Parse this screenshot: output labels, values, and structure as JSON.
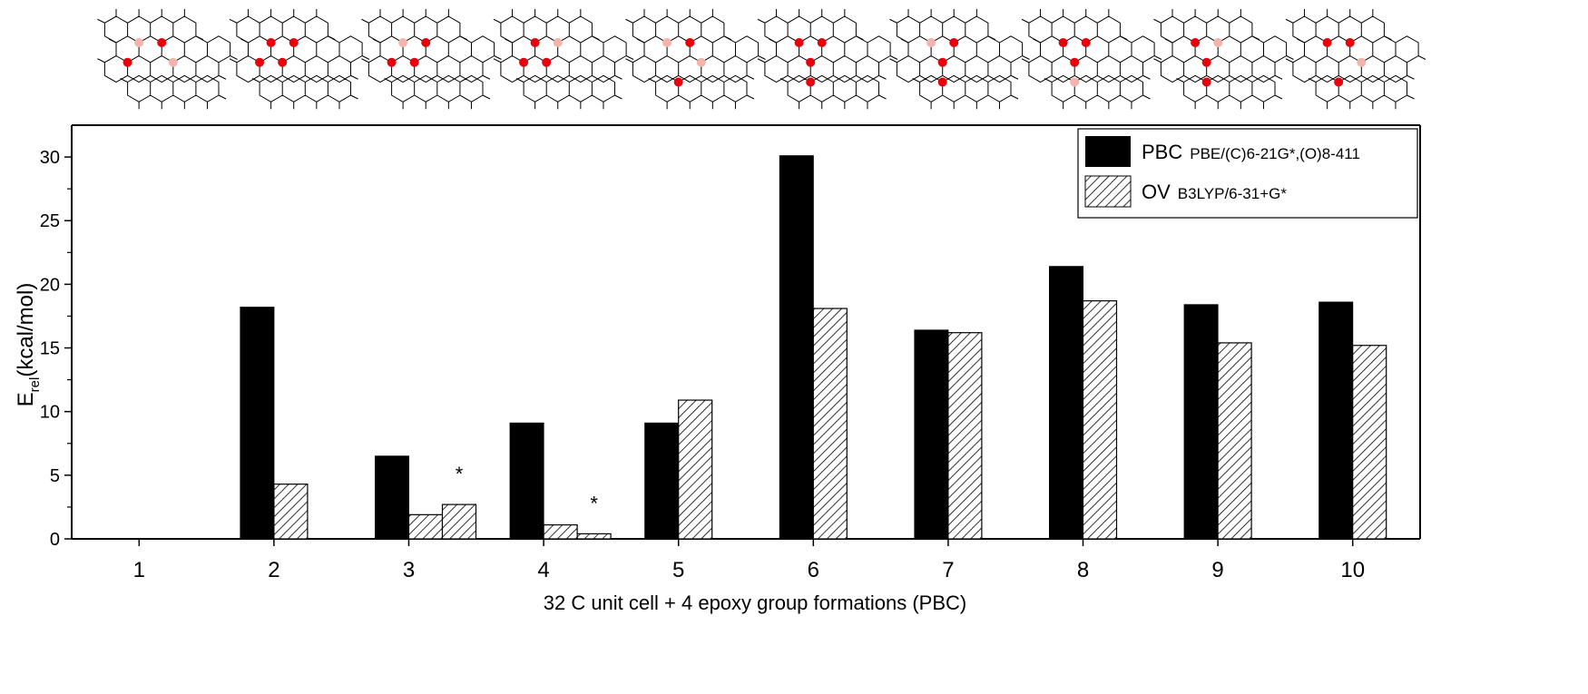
{
  "chart_data": {
    "type": "bar",
    "categories": [
      "1",
      "2",
      "3",
      "4",
      "5",
      "6",
      "7",
      "8",
      "9",
      "10"
    ],
    "xlabel": "32 C unit cell + 4 epoxy group formations (PBC)",
    "ylabel_main": "E",
    "ylabel_sub": "rel",
    "ylabel_unit": "(kcal/mol)",
    "ylim": [
      0,
      32.5
    ],
    "yticks": [
      "0",
      "5",
      "10",
      "15",
      "20",
      "25",
      "30"
    ],
    "grid": false,
    "legend_position": "top-right",
    "series": [
      {
        "name": "PBC",
        "method": "PBE/(C)6-21G*,(O)8-411",
        "color": "#000000",
        "values": [
          0,
          18.2,
          6.5,
          9.1,
          9.1,
          30.1,
          16.4,
          21.4,
          18.4,
          18.6
        ]
      },
      {
        "name": "OV",
        "method": "B3LYP/6-31+G*",
        "pattern": "diagonal-hatch",
        "values": [
          0,
          4.3,
          1.9,
          1.1,
          10.9,
          18.1,
          16.2,
          18.7,
          15.4,
          15.2
        ]
      }
    ],
    "extra_bars": [
      {
        "category": "3",
        "series": "OV",
        "value": 2.7,
        "marker": "*"
      },
      {
        "category": "4",
        "series": "OV",
        "value": 0.4,
        "marker": "*"
      }
    ]
  },
  "structures": {
    "count": 10,
    "oxygen_color": "#e8000b",
    "faded_oxygen_color": "#f2b4ad"
  }
}
